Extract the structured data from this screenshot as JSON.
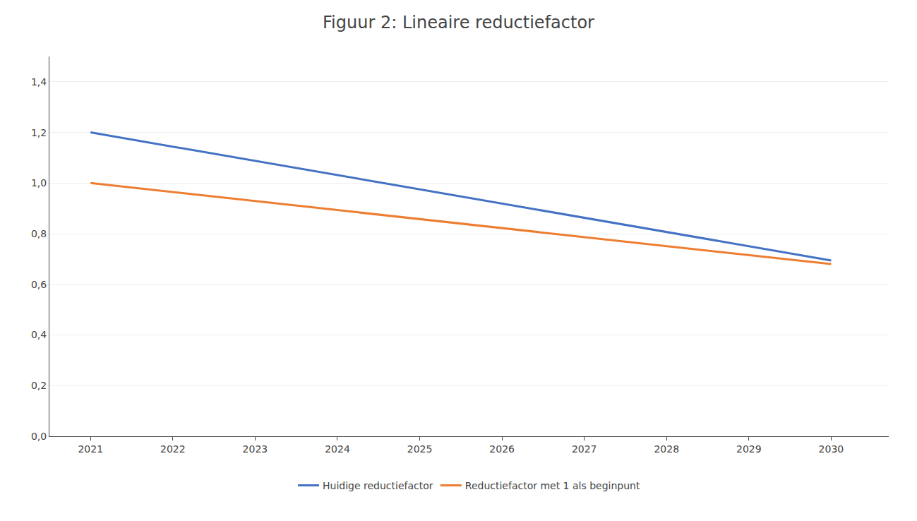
{
  "chart_data": {
    "type": "line",
    "title": "Figuur 2: Lineaire reductiefactor",
    "x": [
      2021,
      2030
    ],
    "series": [
      {
        "name": "Huidige reductiefactor",
        "color": "#4472C4",
        "values": [
          1.2,
          0.6944
        ]
      },
      {
        "name": "Reductiefactor met 1 als beginpunt",
        "color": "#ED7D31",
        "values": [
          1.0,
          0.68
        ]
      }
    ],
    "xlim": [
      2020.5,
      2030.7
    ],
    "xticks": [
      2021,
      2022,
      2023,
      2024,
      2025,
      2026,
      2027,
      2028,
      2029,
      2030
    ],
    "ylim": [
      0.0,
      1.5
    ],
    "yticks": [
      {
        "value": 0.0,
        "label": "0,0"
      },
      {
        "value": 0.2,
        "label": "0,2"
      },
      {
        "value": 0.4,
        "label": "0,4"
      },
      {
        "value": 0.6,
        "label": "0,6"
      },
      {
        "value": 0.8,
        "label": "0,8"
      },
      {
        "value": 1.0,
        "label": "1,0"
      },
      {
        "value": 1.2,
        "label": "1,2"
      },
      {
        "value": 1.4,
        "label": "1,4"
      }
    ],
    "grid": "y",
    "legend": "bottom"
  }
}
